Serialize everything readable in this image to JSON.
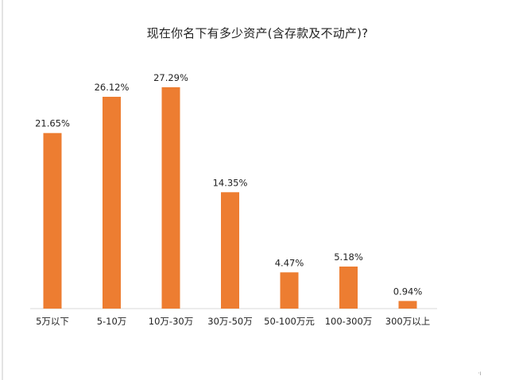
{
  "chart_data": {
    "type": "bar",
    "title": "现在你名下有多少资产(含存款及不动产)?",
    "categories": [
      "5万以下",
      "5-10万",
      "10万-30万",
      "30万-50万",
      "50-100万元",
      "100-300万",
      "300万以上"
    ],
    "values": [
      21.65,
      26.12,
      27.29,
      14.35,
      4.47,
      5.18,
      0.94
    ],
    "value_labels": [
      "21.65%",
      "26.12%",
      "27.29%",
      "14.35%",
      "4.47%",
      "5.18%",
      "0.94%"
    ],
    "unit": "%",
    "ylim": [
      0,
      27.29
    ],
    "grid": false,
    "legend": "none",
    "colors": {
      "bar": "#ED7D31",
      "axis": "#d9d9d9",
      "text": "#222222"
    }
  }
}
